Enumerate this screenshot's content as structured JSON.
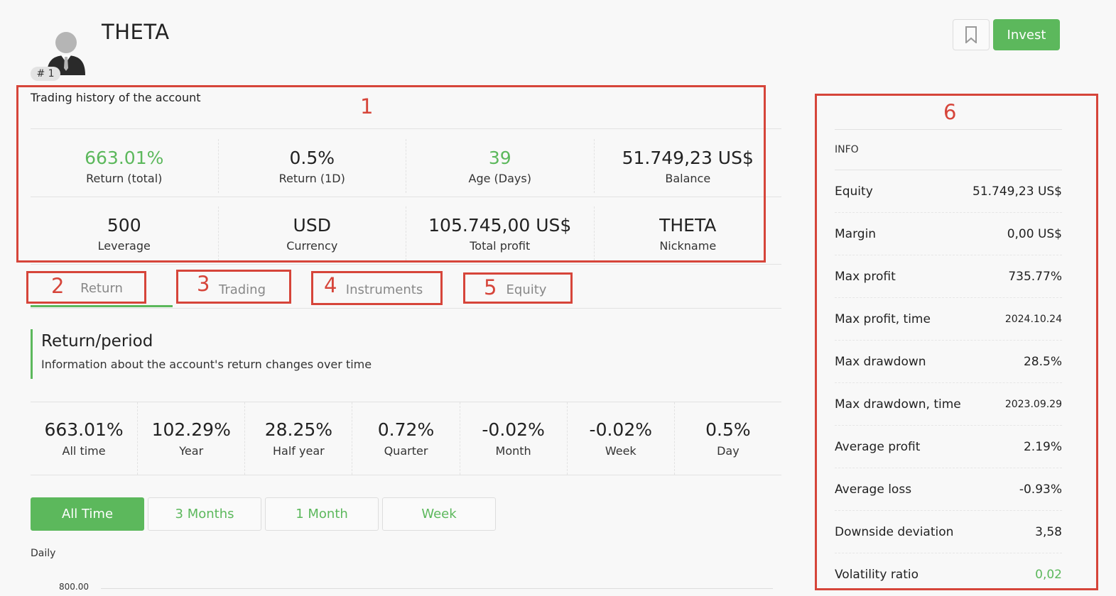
{
  "header": {
    "title": "THETA",
    "rank": "# 1",
    "invest_label": "Invest"
  },
  "overview": {
    "section_label": "Trading history of the account",
    "row1": [
      {
        "value": "663.01%",
        "label": "Return (total)",
        "green": true
      },
      {
        "value": "0.5%",
        "label": "Return (1D)",
        "green": false
      },
      {
        "value": "39",
        "label": "Age (Days)",
        "green": true
      },
      {
        "value": "51.749,23 US$",
        "label": "Balance",
        "green": false
      }
    ],
    "row2": [
      {
        "value": "500",
        "label": "Leverage"
      },
      {
        "value": "USD",
        "label": "Currency"
      },
      {
        "value": "105.745,00 US$",
        "label": "Total profit"
      },
      {
        "value": "THETA",
        "label": "Nickname"
      }
    ]
  },
  "tabs": [
    "Return",
    "Trading",
    "Instruments",
    "Equity"
  ],
  "return_section": {
    "title": "Return/period",
    "subtitle": "Information about the account's return changes over time",
    "periods": [
      {
        "value": "663.01%",
        "label": "All time"
      },
      {
        "value": "102.29%",
        "label": "Year"
      },
      {
        "value": "28.25%",
        "label": "Half year"
      },
      {
        "value": "0.72%",
        "label": "Quarter"
      },
      {
        "value": "-0.02%",
        "label": "Month"
      },
      {
        "value": "-0.02%",
        "label": "Week"
      },
      {
        "value": "0.5%",
        "label": "Day"
      }
    ],
    "ranges": [
      "All Time",
      "3 Months",
      "1 Month",
      "Week"
    ],
    "chart_label": "Daily",
    "y_tick": "800.00"
  },
  "info": {
    "heading": "INFO",
    "rows": [
      {
        "key": "Equity",
        "value": "51.749,23 US$"
      },
      {
        "key": "Margin",
        "value": "0,00 US$"
      },
      {
        "key": "Max profit",
        "value": "735.77%"
      },
      {
        "key": "Max profit, time",
        "value": "2024.10.24"
      },
      {
        "key": "Max drawdown",
        "value": "28.5%"
      },
      {
        "key": "Max drawdown, time",
        "value": "2023.09.29"
      },
      {
        "key": "Average profit",
        "value": "2.19%"
      },
      {
        "key": "Average loss",
        "value": "-0.93%"
      },
      {
        "key": "Downside deviation",
        "value": "3,58"
      },
      {
        "key": "Volatility ratio",
        "value": "0,02"
      }
    ]
  },
  "annotations": [
    "1",
    "2",
    "3",
    "4",
    "5",
    "6"
  ],
  "colors": {
    "accent": "#5cb85c",
    "annotation": "#d6453a"
  }
}
